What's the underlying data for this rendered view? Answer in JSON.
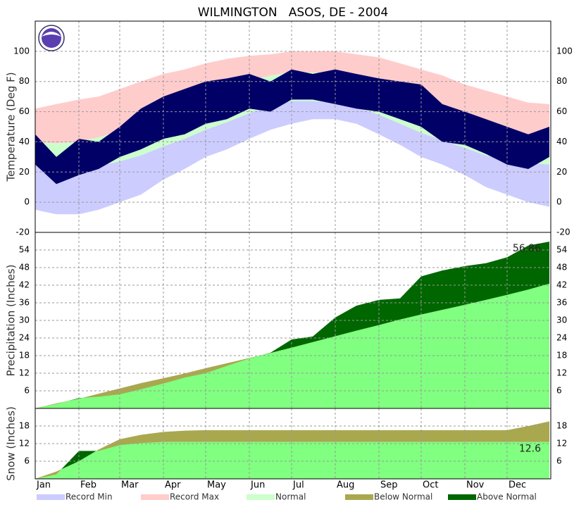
{
  "title": "WILMINGTON   ASOS, DE - 2004",
  "xlim": [
    0,
    366
  ],
  "xticks": [
    {
      "value": 0,
      "label": "Jan"
    },
    {
      "value": 31,
      "label": "Feb"
    },
    {
      "value": 60,
      "label": "Mar"
    },
    {
      "value": 91,
      "label": "Apr"
    },
    {
      "value": 121,
      "label": "May"
    },
    {
      "value": 152,
      "label": "Jun"
    },
    {
      "value": 182,
      "label": "Jul"
    },
    {
      "value": 213,
      "label": "Aug"
    },
    {
      "value": 244,
      "label": "Sep"
    },
    {
      "value": 274,
      "label": "Oct"
    },
    {
      "value": 305,
      "label": "Nov"
    },
    {
      "value": 335,
      "label": "Dec"
    }
  ],
  "x": [
    0,
    15,
    31,
    45,
    60,
    75,
    91,
    106,
    121,
    136,
    152,
    167,
    182,
    197,
    213,
    228,
    244,
    259,
    274,
    289,
    305,
    320,
    335,
    350,
    365
  ],
  "legend": [
    {
      "name": "Record Min",
      "color": "#ccccff"
    },
    {
      "name": "Record Max",
      "color": "#ffcccc"
    },
    {
      "name": "Normal",
      "color": "#ccffcc"
    },
    {
      "name": "Below Normal",
      "color": "#aaa84f"
    },
    {
      "name": "Above Normal",
      "color": "#006600"
    }
  ],
  "chart_data": [
    {
      "type": "band",
      "ylabel": "Temperature (Deg F)",
      "ylim": [
        -20,
        120
      ],
      "yticks": [
        -20,
        0,
        20,
        40,
        60,
        80,
        100
      ],
      "grid": true,
      "record_max": [
        62,
        65,
        68,
        70,
        75,
        80,
        85,
        88,
        92,
        95,
        97,
        98,
        100,
        100,
        100,
        98,
        96,
        92,
        88,
        84,
        78,
        74,
        70,
        66,
        65
      ],
      "normal_high": [
        40,
        39,
        40,
        43,
        47,
        52,
        58,
        64,
        70,
        75,
        80,
        84,
        86,
        86,
        85,
        83,
        79,
        74,
        68,
        63,
        56,
        50,
        45,
        42,
        40
      ],
      "normal_low": [
        25,
        23,
        23,
        24,
        27,
        31,
        37,
        42,
        48,
        53,
        59,
        64,
        67,
        67,
        66,
        63,
        58,
        52,
        46,
        41,
        36,
        31,
        28,
        26,
        25
      ],
      "record_min": [
        -5,
        -8,
        -8,
        -5,
        0,
        5,
        15,
        22,
        30,
        35,
        42,
        48,
        52,
        55,
        55,
        52,
        45,
        38,
        30,
        25,
        18,
        10,
        5,
        0,
        -3
      ],
      "observed_high": [
        45,
        30,
        42,
        40,
        50,
        62,
        70,
        75,
        80,
        82,
        85,
        80,
        88,
        85,
        88,
        85,
        82,
        80,
        78,
        65,
        60,
        55,
        50,
        45,
        50
      ],
      "observed_low": [
        25,
        12,
        18,
        22,
        30,
        35,
        42,
        45,
        52,
        55,
        62,
        60,
        68,
        68,
        65,
        62,
        60,
        55,
        50,
        40,
        38,
        32,
        25,
        22,
        30
      ],
      "observed_color": "#000066"
    },
    {
      "type": "cumulative",
      "ylabel": "Precipitation (Inches)",
      "ylim": [
        0,
        60
      ],
      "yticks": [
        6,
        12,
        18,
        24,
        30,
        36,
        42,
        48,
        54
      ],
      "grid": true,
      "normal": [
        0,
        1.7,
        3.3,
        5,
        6.8,
        8.6,
        10.3,
        11.9,
        13.7,
        15.4,
        17.2,
        18.9,
        20.7,
        22.6,
        24.6,
        26.5,
        28.4,
        30.3,
        32,
        33.6,
        35.3,
        37,
        38.7,
        40.5,
        42.5
      ],
      "observed": [
        0,
        1.5,
        3.5,
        4,
        4.8,
        6.5,
        8.5,
        10.5,
        12,
        14.5,
        17,
        19,
        23.5,
        24.5,
        31,
        35,
        37,
        37.5,
        45,
        47,
        48.5,
        49.5,
        51.5,
        55.5,
        56.86
      ],
      "observed_color": "#80ff80",
      "annotation": "56.86"
    },
    {
      "type": "cumulative",
      "ylabel": "Snow (Inches)",
      "ylim": [
        0,
        24
      ],
      "yticks": [
        6,
        12,
        18
      ],
      "grid": true,
      "normal": [
        0,
        2.5,
        6,
        10,
        13.5,
        15,
        16,
        16.4,
        16.6,
        16.6,
        16.6,
        16.6,
        16.6,
        16.6,
        16.6,
        16.6,
        16.6,
        16.6,
        16.6,
        16.6,
        16.6,
        16.6,
        16.6,
        18,
        19.6
      ],
      "observed": [
        0,
        1.5,
        9.5,
        9.5,
        11.5,
        12.2,
        12.6,
        12.6,
        12.6,
        12.6,
        12.6,
        12.6,
        12.6,
        12.6,
        12.6,
        12.6,
        12.6,
        12.6,
        12.6,
        12.6,
        12.6,
        12.6,
        12.6,
        12.6,
        12.6
      ],
      "observed_color": "#80ff80",
      "annotation": "12.6"
    }
  ]
}
